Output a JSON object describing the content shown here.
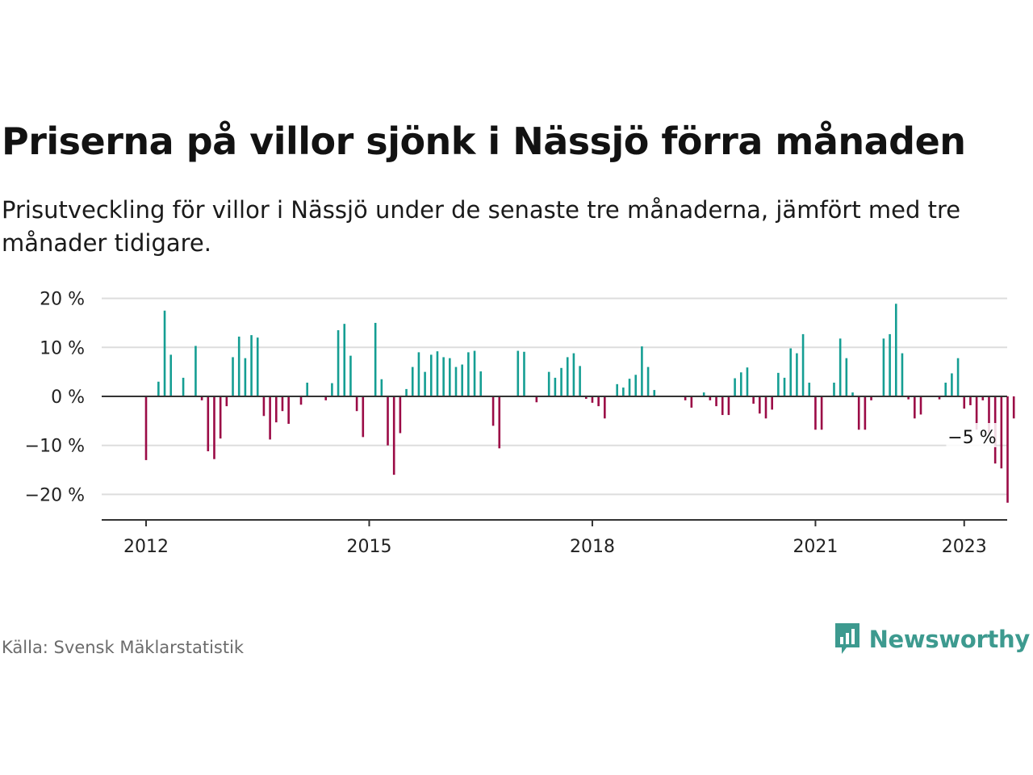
{
  "title": "Priserna på villor sjönk i Nässjö förra månaden",
  "subtitle": "Prisutveckling för villor i Nässjö under de senaste tre månaderna, jämfört med tre månader tidigare.",
  "source": "Källa: Svensk Mäklarstatistik",
  "brand": {
    "name": "Newsworthy",
    "icon": "newsworthy-logo-icon",
    "color": "#3d9a8f"
  },
  "colors": {
    "positive": "#159e93",
    "negative": "#9b0b46",
    "grid": "#dddddd",
    "zero": "#333333"
  },
  "chart_data": {
    "type": "bar",
    "x_start": "2012-01",
    "frequency": "monthly",
    "ylim": [
      -25,
      20
    ],
    "yticks": [
      20,
      10,
      0,
      -10,
      -20
    ],
    "ytick_labels": [
      "20 %",
      "10 %",
      "0 %",
      "−10 %",
      "−20 %"
    ],
    "xticks": [
      "2012",
      "2015",
      "2018",
      "2021",
      "2023"
    ],
    "grid": true,
    "annotation": {
      "text": "−5 %",
      "month": "2023-02"
    },
    "values": [
      -13,
      0,
      3,
      17.5,
      8.5,
      0,
      3.8,
      0,
      10.3,
      -0.8,
      -11.2,
      -12.8,
      -8.6,
      -2,
      8,
      12.2,
      7.8,
      12.5,
      12,
      -4,
      -8.8,
      -5.3,
      -3,
      -5.6,
      0,
      -1.7,
      2.8,
      0,
      0,
      -0.8,
      2.7,
      13.5,
      14.8,
      8.3,
      -3,
      -8.3,
      0,
      15,
      3.5,
      -10,
      -16,
      -7.5,
      1.5,
      6,
      9,
      5,
      8.5,
      9.2,
      8,
      7.8,
      6,
      6.5,
      9,
      9.3,
      5.1,
      0,
      -6,
      -10.6,
      0,
      0,
      9.3,
      9.1,
      0,
      -1.2,
      0,
      5,
      3.8,
      5.8,
      8,
      8.8,
      6.2,
      -0.5,
      -1.3,
      -2,
      -4.5,
      0,
      2.5,
      1.8,
      3.6,
      4.4,
      10.2,
      6,
      1.3,
      0,
      0,
      0,
      0,
      -0.8,
      -2.3,
      0,
      0.8,
      -0.8,
      -2,
      -3.8,
      -3.8,
      3.7,
      4.9,
      5.9,
      -1.5,
      -3.5,
      -4.5,
      -2.7,
      4.8,
      3.8,
      9.8,
      8.8,
      12.7,
      2.8,
      -6.8,
      -6.8,
      0,
      2.8,
      11.8,
      7.8,
      0.8,
      -6.8,
      -6.8,
      -0.8,
      0,
      11.8,
      12.7,
      18.9,
      8.8,
      -0.6,
      -4.5,
      -3.7,
      0,
      0,
      -0.6,
      2.8,
      4.7,
      7.8,
      -2.5,
      -1.8,
      -6.8,
      -0.8,
      -7.5,
      -13.7,
      -14.7,
      -21.7,
      -4.5
    ]
  }
}
